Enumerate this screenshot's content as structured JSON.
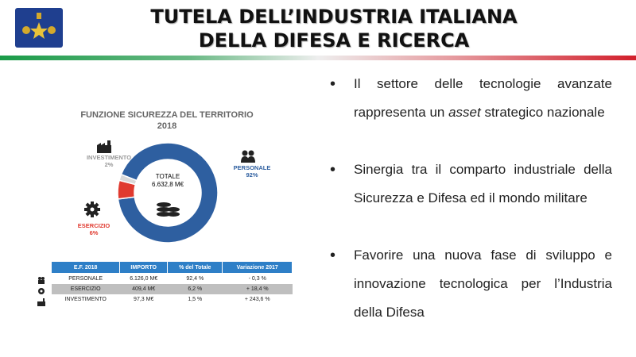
{
  "header": {
    "title_line1": "TUTELA DELL’INDUSTRIA ITALIANA",
    "title_line2": "DELLA DIFESA E RICERCA"
  },
  "colors": {
    "green": "#1a9b48",
    "red": "#d21f2b",
    "blue": "#2e5fa0",
    "accent_red": "#e03a2f"
  },
  "chart": {
    "title_line1": "FUNZIONE SICUREZZA DEL TERRITORIO",
    "title_line2": "2018",
    "center_label": "TOTALE",
    "center_value": "6.632,8 M€",
    "labels": {
      "investimento_name": "INVESTIMENTO",
      "investimento_pct": "2%",
      "personale_name": "PERSONALE",
      "personale_pct": "92%",
      "esercizio_name": "ESERCIZIO",
      "esercizio_pct": "6%"
    }
  },
  "chart_data": {
    "type": "pie",
    "title": "FUNZIONE SICUREZZA DEL TERRITORIO 2018",
    "slices": [
      {
        "label": "PERSONALE",
        "value": 92,
        "color": "#2e5fa0"
      },
      {
        "label": "ESERCIZIO",
        "value": 6,
        "color": "#e03a2f"
      },
      {
        "label": "INVESTIMENTO",
        "value": 2,
        "color": "#d9d9d9"
      }
    ]
  },
  "table": {
    "headers": [
      "E.F. 2018",
      "IMPORTO",
      "% del Totale",
      "Variazione 2017"
    ],
    "rows": [
      [
        "PERSONALE",
        "6.126,0 M€",
        "92,4 %",
        "- 0,3 %"
      ],
      [
        "ESERCIZIO",
        "409,4 M€",
        "6,2 %",
        "+ 18,4 %"
      ],
      [
        "INVESTIMENTO",
        "97,3 M€",
        "1,5 %",
        "+ 243,6 %"
      ]
    ]
  },
  "bullets": [
    {
      "before": "Il settore delle tecnologie avanzate rappresenta un ",
      "em": "asset",
      "after": " strategico nazionale"
    },
    {
      "before": "Sinergia tra il comparto industriale della Sicurezza e Difesa ed il mondo militare",
      "em": "",
      "after": ""
    },
    {
      "before": "Favorire una nuova fase di sviluppo e innovazione tecnologica per l’Industria della Difesa",
      "em": "",
      "after": ""
    }
  ]
}
